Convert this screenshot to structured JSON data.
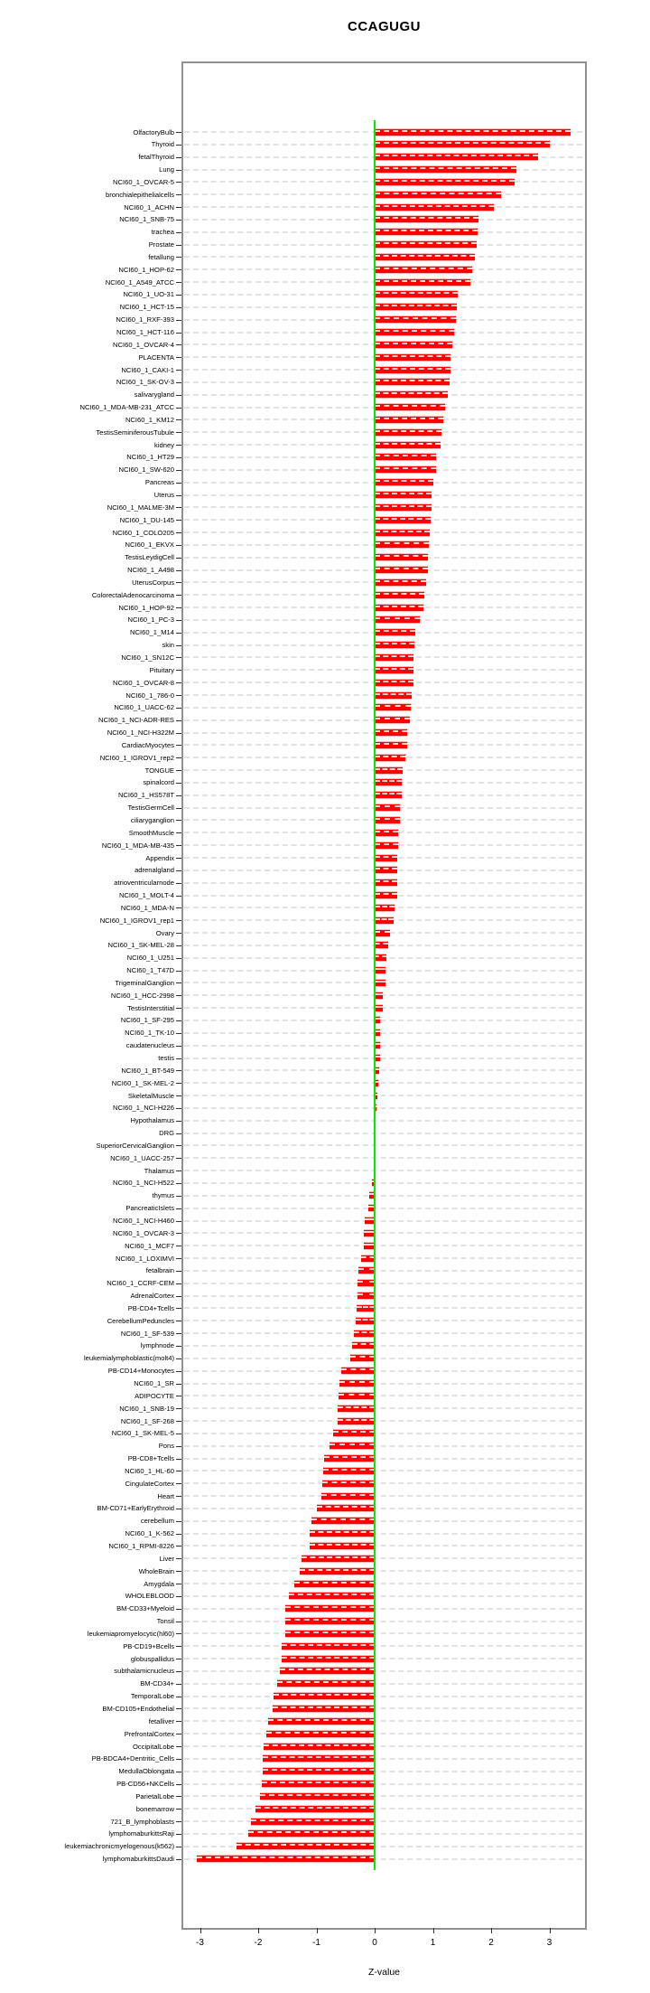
{
  "title": "CCAGUGU",
  "xlabel": "Z-value",
  "x_ticks": [
    "-3",
    "-2",
    "-1",
    "0",
    "1",
    "2",
    "3"
  ],
  "x_tick_values": [
    -3,
    -2,
    -1,
    0,
    1,
    2,
    3
  ],
  "colors": {
    "bar": "#ff0000",
    "bar_edge": "#ffb6b6",
    "zero_line": "#00ee00",
    "box_border": "#909090",
    "grid": "#e2e2e2",
    "text": "#000000"
  },
  "chart_data": {
    "type": "bar",
    "orientation": "horizontal",
    "title": "CCAGUGU",
    "xlabel": "Z-value",
    "xlim": [
      -3.3,
      3.6
    ],
    "grid": true,
    "zero_reference_line": 0,
    "categories": [
      "OlfactoryBulb",
      "Thyroid",
      "fetalThyroid",
      "Lung",
      "NCI60_1_OVCAR-5",
      "bronchialepithelialcells",
      "NCI60_1_ACHN",
      "NCI60_1_SNB-75",
      "trachea",
      "Prostate",
      "fetallung",
      "NCI60_1_HOP-62",
      "NCI60_1_A549_ATCC",
      "NCI60_1_UO-31",
      "NCI60_1_HCT-15",
      "NCI60_1_RXF-393",
      "NCI60_1_HCT-116",
      "NCI60_1_OVCAR-4",
      "PLACENTA",
      "NCI60_1_CAKI-1",
      "NCI60_1_SK-OV-3",
      "salivarygland",
      "NCI60_1_MDA-MB-231_ATCC",
      "NCI60_1_KM12",
      "TestisSeminiferousTubule",
      "kidney",
      "NCI60_1_HT29",
      "NCI60_1_SW-620",
      "Pancreas",
      "Uterus",
      "NCI60_1_MALME-3M",
      "NCI60_1_DU-145",
      "NCI60_1_COLO205",
      "NCI60_1_EKVX",
      "TestisLeydigCell",
      "NCI60_1_A498",
      "UterusCorpus",
      "ColorectalAdenocarcinoma",
      "NCI60_1_HOP-92",
      "NCI60_1_PC-3",
      "NCI60_1_M14",
      "skin",
      "NCI60_1_SN12C",
      "Pituitary",
      "NCI60_1_OVCAR-8",
      "NCI60_1_786-0",
      "NCI60_1_UACC-62",
      "NCI60_1_NCI-ADR-RES",
      "NCI60_1_NCI-H322M",
      "CardiacMyocytes",
      "NCI60_1_IGROV1_rep2",
      "TONGUE",
      "spinalcord",
      "NCI60_1_HS578T",
      "TestisGermCell",
      "ciliaryganglion",
      "SmoothMuscle",
      "NCI60_1_MDA-MB-435",
      "Appendix",
      "adrenalgland",
      "atrioventricularnode",
      "NCI60_1_MOLT-4",
      "NCI60_1_MDA-N",
      "NCI60_1_IGROV1_rep1",
      "Ovary",
      "NCI60_1_SK-MEL-28",
      "NCI60_1_U251",
      "NCI60_1_T47D",
      "TrigeminalGanglion",
      "NCI60_1_HCC-2998",
      "TestisInterstitial",
      "NCI60_1_SF-295",
      "NCI60_1_TK-10",
      "caudatenucleus",
      "testis",
      "NCI60_1_BT-549",
      "NCI60_1_SK-MEL-2",
      "SkeletalMuscle",
      "NCI60_1_NCI-H226",
      "Hypothalamus",
      "DRG",
      "SuperiorCervicalGanglion",
      "NCI60_1_UACC-257",
      "Thalamus",
      "NCI60_1_NCI-H522",
      "thymus",
      "PancreaticIslets",
      "NCI60_1_NCI-H460",
      "NCI60_1_OVCAR-3",
      "NCI60_1_MCF7",
      "NCI60_1_LOXIMVI",
      "fetalbrain",
      "NCI60_1_CCRF-CEM",
      "AdrenalCortex",
      "PB-CD4+Tcells",
      "CerebellumPeduncles",
      "NCI60_1_SF-539",
      "lymphnode",
      "leukemialymphoblastic(molt4)",
      "PB-CD14+Monocytes",
      "NCI60_1_SR",
      "ADIPOCYTE",
      "NCI60_1_SNB-19",
      "NCI60_1_SF-268",
      "NCI60_1_SK-MEL-5",
      "Pons",
      "PB-CD8+Tcells",
      "NCI60_1_HL-60",
      "CingulateCortex",
      "Heart",
      "BM-CD71+EarlyErythroid",
      "cerebellum",
      "NCI60_1_K-562",
      "NCI60_1_RPMI-8226",
      "Liver",
      "WholeBrain",
      "Amygdala",
      "WHOLEBLOOD",
      "BM-CD33+Myeloid",
      "Tonsil",
      "leukemiapromyelocytic(hl60)",
      "PB-CD19+Bcells",
      "globuspallidus",
      "subthalamicnucleus",
      "BM-CD34+",
      "TemporalLobe",
      "BM-CD105+Endothelial",
      "fetalliver",
      "PrefrontalCortex",
      "OccipitalLobe",
      "PB-BDCA4+Dentritic_Cells",
      "MedullaOblongata",
      "PB-CD56+NKCells",
      "ParietalLobe",
      "bonemarrow",
      "721_B_lymphoblasts",
      "lymphomaburkittsRaji",
      "leukemiachronicmyelogenous(k562)",
      "lymphomaburkittsDaudi"
    ],
    "values": [
      3.37,
      3.0,
      2.8,
      2.43,
      2.4,
      2.17,
      2.05,
      1.78,
      1.77,
      1.75,
      1.72,
      1.68,
      1.65,
      1.42,
      1.41,
      1.4,
      1.36,
      1.33,
      1.31,
      1.3,
      1.29,
      1.25,
      1.21,
      1.18,
      1.15,
      1.13,
      1.06,
      1.05,
      1.0,
      0.98,
      0.97,
      0.96,
      0.95,
      0.93,
      0.91,
      0.91,
      0.88,
      0.85,
      0.83,
      0.77,
      0.69,
      0.68,
      0.67,
      0.67,
      0.66,
      0.64,
      0.62,
      0.61,
      0.56,
      0.56,
      0.52,
      0.48,
      0.46,
      0.46,
      0.44,
      0.43,
      0.4,
      0.4,
      0.39,
      0.39,
      0.38,
      0.38,
      0.34,
      0.33,
      0.27,
      0.24,
      0.2,
      0.18,
      0.18,
      0.14,
      0.14,
      0.1,
      0.1,
      0.09,
      0.09,
      0.08,
      0.06,
      0.04,
      0.03,
      0.02,
      0.01,
      0.0,
      0.0,
      -0.01,
      -0.05,
      -0.1,
      -0.11,
      -0.17,
      -0.19,
      -0.19,
      -0.24,
      -0.28,
      -0.29,
      -0.3,
      -0.31,
      -0.33,
      -0.36,
      -0.39,
      -0.42,
      -0.58,
      -0.61,
      -0.62,
      -0.63,
      -0.64,
      -0.71,
      -0.78,
      -0.87,
      -0.89,
      -0.9,
      -0.92,
      -0.99,
      -1.08,
      -1.12,
      -1.12,
      -1.26,
      -1.28,
      -1.38,
      -1.48,
      -1.53,
      -1.53,
      -1.53,
      -1.59,
      -1.6,
      -1.63,
      -1.67,
      -1.73,
      -1.75,
      -1.83,
      -1.86,
      -1.91,
      -1.92,
      -1.93,
      -1.94,
      -1.97,
      -2.04,
      -2.12,
      -2.17,
      -2.37,
      -3.05
    ]
  }
}
